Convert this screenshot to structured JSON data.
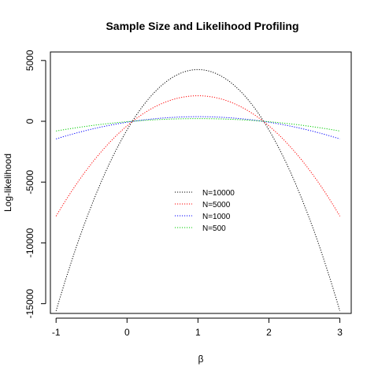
{
  "chart_data": {
    "type": "line",
    "title": "Sample Size and Likelihood Profiling",
    "xlabel": "β",
    "ylabel": "Log-likelihood",
    "xlim": [
      -1.08,
      3.16
    ],
    "ylim": [
      -15800,
      5700
    ],
    "x_ticks": [
      -1,
      0,
      1,
      2,
      3
    ],
    "x_tick_labels": [
      "-1",
      "0",
      "1",
      "2",
      "3"
    ],
    "y_ticks": [
      -15000,
      -10000,
      -5000,
      0,
      5000
    ],
    "y_tick_labels": [
      "-15000",
      "-10000",
      "-5000",
      "0",
      "5000"
    ],
    "grid": false,
    "legend_position": "center",
    "line_style": "dotted",
    "series": [
      {
        "name": "N=10000",
        "color": "#000000",
        "x": [
          -1,
          -0.5,
          0,
          0.5,
          1,
          1.5,
          2,
          2.5,
          3
        ],
        "y": [
          -15600,
          -5770,
          270,
          3250,
          4250,
          3250,
          270,
          -5770,
          -15600
        ]
      },
      {
        "name": "N=5000",
        "color": "#ff0000",
        "x": [
          -1,
          -0.5,
          0,
          0.5,
          1,
          1.5,
          2,
          2.5,
          3
        ],
        "y": [
          -7800,
          -2880,
          160,
          1600,
          2100,
          1600,
          160,
          -2880,
          -7800
        ]
      },
      {
        "name": "N=1000",
        "color": "#0000ff",
        "x": [
          -1,
          -0.5,
          0,
          0.5,
          1,
          1.5,
          2,
          2.5,
          3
        ],
        "y": [
          -1450,
          -470,
          60,
          300,
          380,
          300,
          60,
          -470,
          -1450
        ]
      },
      {
        "name": "N=500",
        "color": "#00cc00",
        "x": [
          -1,
          -0.5,
          0,
          0.5,
          1,
          1.5,
          2,
          2.5,
          3
        ],
        "y": [
          -800,
          -250,
          40,
          180,
          220,
          180,
          40,
          -250,
          -800
        ]
      }
    ]
  }
}
